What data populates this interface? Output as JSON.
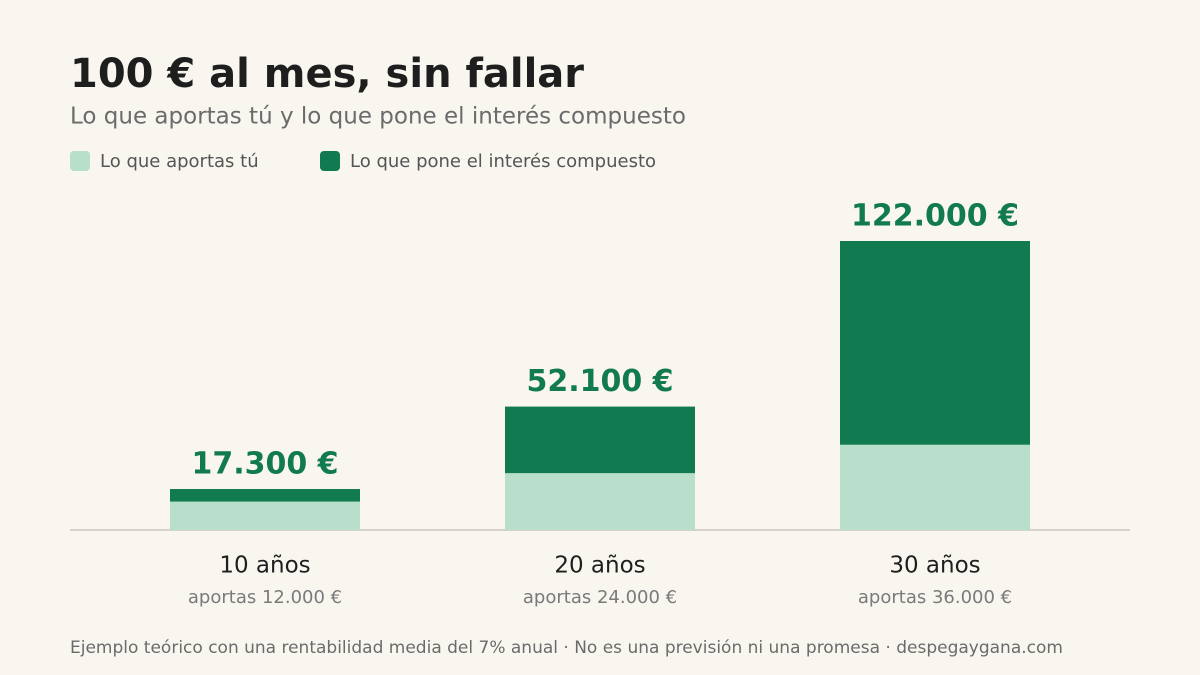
{
  "chart_data": {
    "type": "stacked-bar",
    "title": "100 € al mes, sin fallar",
    "subtitle": "Lo que aportas tú y lo que pone el interés compuesto",
    "categories": [
      "10 años",
      "20 años",
      "30 años"
    ],
    "sublabels": [
      "aportas 12.000 €",
      "aportas 24.000 €",
      "aportas 36.000 €"
    ],
    "series": [
      {
        "name": "Lo que aportas tú",
        "color": "#b8dfcb",
        "values": [
          12000,
          24000,
          36000
        ]
      },
      {
        "name": "Lo que pone el interés compuesto",
        "color": "#117a50",
        "values": [
          5300,
          28100,
          86000
        ]
      }
    ],
    "totals": {
      "values": [
        17300,
        52100,
        122000
      ],
      "value_labels": [
        "17.300 €",
        "52.100 €",
        "122.000 €"
      ],
      "color": "#117a50"
    },
    "footnote": "Ejemplo teórico con una rentabilidad media del 7% anual · No es una previsión ni una promesa · despegaygana.com"
  }
}
